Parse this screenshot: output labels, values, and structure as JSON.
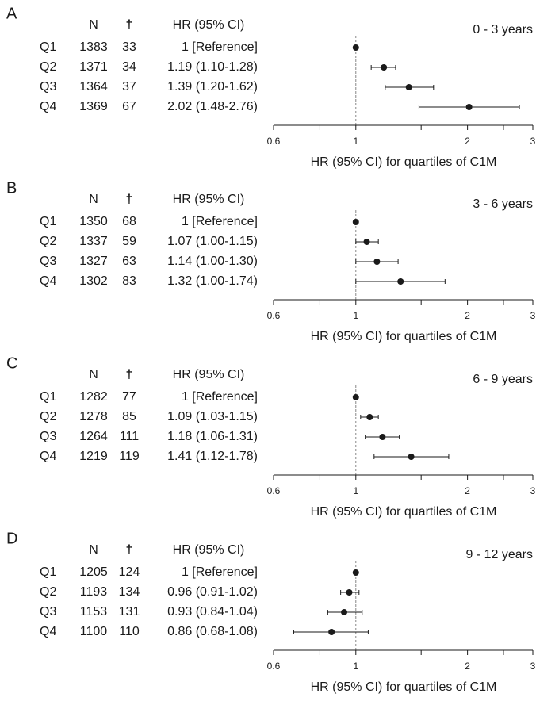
{
  "chart_data": [
    {
      "type": "forest",
      "panel": "A",
      "title": "0 - 3 years",
      "columns": [
        "N",
        "†",
        "HR (95% CI)"
      ],
      "categories": [
        "Q1",
        "Q2",
        "Q3",
        "Q4"
      ],
      "n": [
        1383,
        1371,
        1364,
        1369
      ],
      "deaths": [
        33,
        34,
        37,
        67
      ],
      "values": [
        1,
        1.19,
        1.39,
        2.02
      ],
      "lower": [
        null,
        1.1,
        1.2,
        1.48
      ],
      "upper": [
        null,
        1.28,
        1.62,
        2.76
      ],
      "value_labels": [
        "1 [Reference]",
        "1.19 (1.10-1.28)",
        "1.39 (1.20-1.62)",
        "2.02 (1.48-2.76)"
      ],
      "xlabel": "HR (95% CI) for quartiles of C1M",
      "xscale": "log",
      "xlim": [
        0.6,
        3
      ],
      "xticks": [
        0.6,
        1,
        2,
        3
      ],
      "minor_xticks": [
        0.8,
        1.5,
        2.5
      ],
      "ref_line": 1,
      "color": "#1a1a1a"
    },
    {
      "type": "forest",
      "panel": "B",
      "title": "3 - 6 years",
      "columns": [
        "N",
        "†",
        "HR (95% CI)"
      ],
      "categories": [
        "Q1",
        "Q2",
        "Q3",
        "Q4"
      ],
      "n": [
        1350,
        1337,
        1327,
        1302
      ],
      "deaths": [
        68,
        59,
        63,
        83
      ],
      "values": [
        1,
        1.07,
        1.14,
        1.32
      ],
      "lower": [
        null,
        1.0,
        1.0,
        1.0
      ],
      "upper": [
        null,
        1.15,
        1.3,
        1.74
      ],
      "value_labels": [
        "1 [Reference]",
        "1.07 (1.00-1.15)",
        "1.14 (1.00-1.30)",
        "1.32 (1.00-1.74)"
      ],
      "xlabel": "HR (95% CI) for quartiles of C1M",
      "xscale": "log",
      "xlim": [
        0.6,
        3
      ],
      "xticks": [
        0.6,
        1,
        2,
        3
      ],
      "minor_xticks": [
        0.8,
        1.5,
        2.5
      ],
      "ref_line": 1,
      "color": "#1a1a1a"
    },
    {
      "type": "forest",
      "panel": "C",
      "title": "6 - 9 years",
      "columns": [
        "N",
        "†",
        "HR (95% CI)"
      ],
      "categories": [
        "Q1",
        "Q2",
        "Q3",
        "Q4"
      ],
      "n": [
        1282,
        1278,
        1264,
        1219
      ],
      "deaths": [
        77,
        85,
        111,
        119
      ],
      "values": [
        1,
        1.09,
        1.18,
        1.41
      ],
      "lower": [
        null,
        1.03,
        1.06,
        1.12
      ],
      "upper": [
        null,
        1.15,
        1.31,
        1.78
      ],
      "value_labels": [
        "1 [Reference]",
        "1.09 (1.03-1.15)",
        "1.18 (1.06-1.31)",
        "1.41 (1.12-1.78)"
      ],
      "xlabel": "HR (95% CI) for quartiles of C1M",
      "xscale": "log",
      "xlim": [
        0.6,
        3
      ],
      "xticks": [
        0.6,
        1,
        2,
        3
      ],
      "minor_xticks": [
        0.8,
        1.5,
        2.5
      ],
      "ref_line": 1,
      "color": "#1a1a1a"
    },
    {
      "type": "forest",
      "panel": "D",
      "title": "9 - 12 years",
      "columns": [
        "N",
        "†",
        "HR (95% CI)"
      ],
      "categories": [
        "Q1",
        "Q2",
        "Q3",
        "Q4"
      ],
      "n": [
        1205,
        1193,
        1153,
        1100
      ],
      "deaths": [
        124,
        134,
        131,
        110
      ],
      "values": [
        1,
        0.96,
        0.93,
        0.86
      ],
      "lower": [
        null,
        0.91,
        0.84,
        0.68
      ],
      "upper": [
        null,
        1.02,
        1.04,
        1.08
      ],
      "value_labels": [
        "1 [Reference]",
        "0.96 (0.91-1.02)",
        "0.93 (0.84-1.04)",
        "0.86 (0.68-1.08)"
      ],
      "xlabel": "HR (95% CI) for quartiles of C1M",
      "xscale": "log",
      "xlim": [
        0.6,
        3
      ],
      "xticks": [
        0.6,
        1,
        2,
        3
      ],
      "minor_xticks": [
        0.8,
        1.5,
        2.5
      ],
      "ref_line": 1,
      "color": "#1a1a1a"
    }
  ]
}
